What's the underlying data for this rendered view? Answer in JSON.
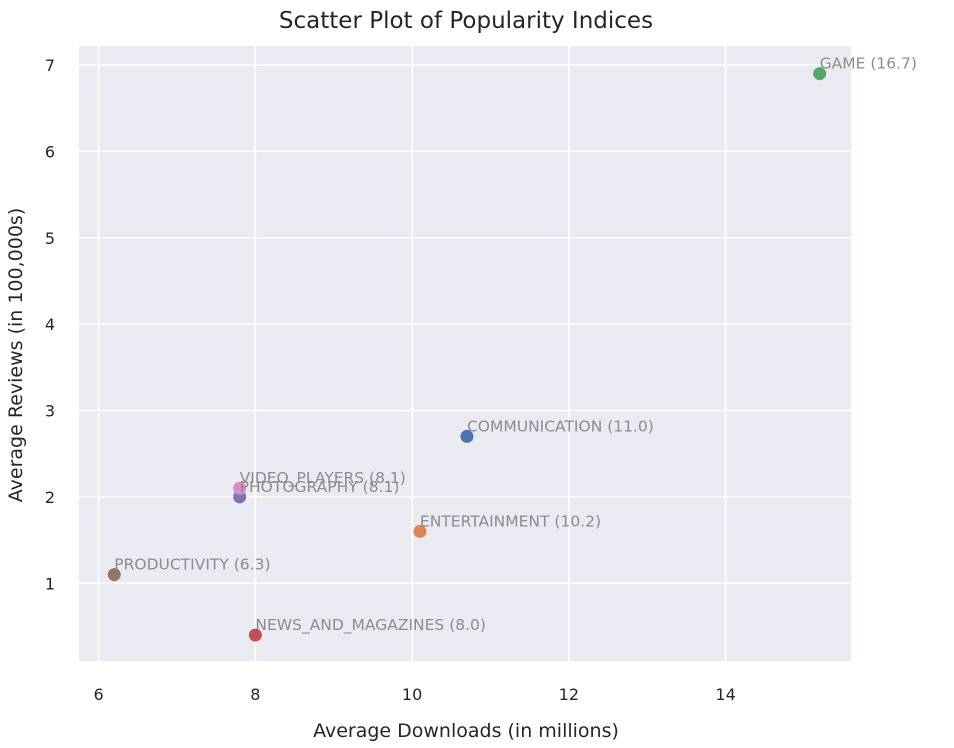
{
  "chart_data": {
    "type": "scatter",
    "title": "Scatter Plot of Popularity Indices",
    "xlabel": "Average Downloads (in millions)",
    "ylabel": "Average Reviews (in 100,000s)",
    "xlim": [
      5.75,
      15.6
    ],
    "ylim": [
      0.1,
      7.22
    ],
    "xticks": [
      6,
      8,
      10,
      12,
      14
    ],
    "yticks": [
      1,
      2,
      3,
      4,
      5,
      6,
      7
    ],
    "grid": true,
    "background": "#eaeaf2",
    "points": [
      {
        "label": "COMMUNICATION (11.0)",
        "x": 10.7,
        "y": 2.7,
        "color": "#4c72b0"
      },
      {
        "label": "ENTERTAINMENT (10.2)",
        "x": 10.1,
        "y": 1.6,
        "color": "#dd8452"
      },
      {
        "label": "GAME (16.7)",
        "x": 15.2,
        "y": 6.9,
        "color": "#55a868"
      },
      {
        "label": "NEWS_AND_MAGAZINES (8.0)",
        "x": 8.0,
        "y": 0.4,
        "color": "#c44e52"
      },
      {
        "label": "PHOTOGRAPHY (8.1)",
        "x": 7.8,
        "y": 2.0,
        "color": "#8172b3"
      },
      {
        "label": "PRODUCTIVITY (6.3)",
        "x": 6.2,
        "y": 1.1,
        "color": "#937860"
      },
      {
        "label": "VIDEO_PLAYERS (8.1)",
        "x": 7.8,
        "y": 2.1,
        "color": "#da8bc3"
      }
    ]
  }
}
